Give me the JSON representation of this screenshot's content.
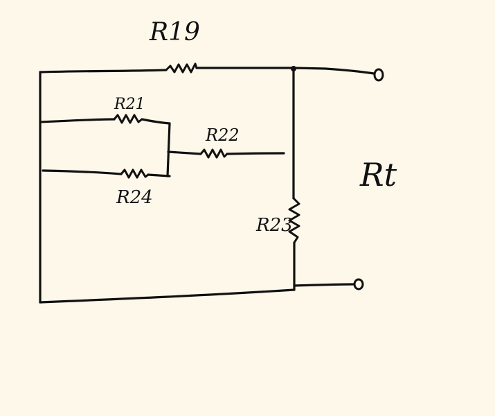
{
  "labels": {
    "r19": "R19",
    "r21": "R21",
    "r22": "R22",
    "r24": "R24",
    "r23": "R23",
    "rt": "Rt"
  },
  "colors": {
    "background": "#fdf8ea",
    "ink": "#111111"
  }
}
